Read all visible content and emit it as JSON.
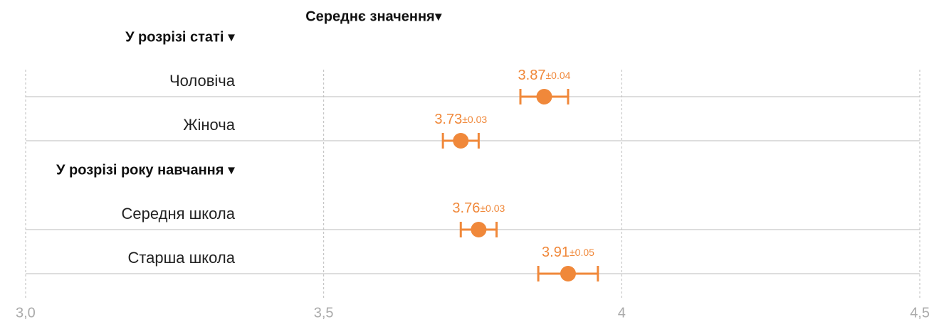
{
  "chart_data": {
    "type": "dot-error",
    "title": "Середнє значення▾",
    "color": "#f0883a",
    "groups": [
      {
        "name": "У розрізі статі ▾",
        "categories": [
          "Чоловіча",
          "Жіноча"
        ],
        "values": [
          3.87,
          3.73
        ],
        "errors": [
          0.04,
          0.03
        ],
        "error_labels": [
          "±0.04",
          "±0.03"
        ]
      },
      {
        "name": "У розрізі року навчання ▾",
        "categories": [
          "Середня школа",
          "Старша школа"
        ],
        "values": [
          3.76,
          3.91
        ],
        "errors": [
          0.03,
          0.05
        ],
        "error_labels": [
          "±0.03",
          "±0.05"
        ]
      }
    ],
    "xlim": [
      3.0,
      4.5
    ],
    "xticks": [
      {
        "value": 3.0,
        "label": "3,0"
      },
      {
        "value": 3.5,
        "label": "3,5"
      },
      4,
      {
        "value": 4.5,
        "label": "4,5"
      }
    ],
    "grid": true
  }
}
